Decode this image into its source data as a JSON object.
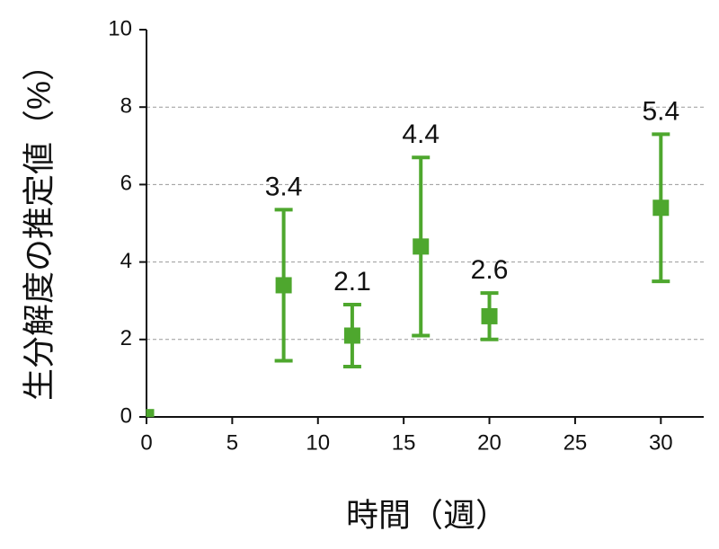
{
  "chart_data": {
    "type": "scatter",
    "xlabel": "時間（週）",
    "ylabel": "生分解度の推定値（%）",
    "x": [
      0,
      8,
      12,
      16,
      20,
      30
    ],
    "values": [
      0.1,
      3.4,
      2.1,
      4.4,
      2.6,
      5.4
    ],
    "errors": [
      null,
      1.95,
      0.8,
      2.3,
      0.6,
      1.9
    ],
    "value_labels": [
      null,
      "3.4",
      "2.1",
      "4.4",
      "2.6",
      "5.4"
    ],
    "color": "#4ea72e",
    "xlim": [
      0,
      32.5
    ],
    "xticks": [
      0,
      5,
      10,
      15,
      20,
      25,
      30
    ],
    "ylim": [
      0,
      10
    ],
    "yticks": [
      0,
      2,
      4,
      6,
      8,
      10
    ],
    "grid": true
  }
}
